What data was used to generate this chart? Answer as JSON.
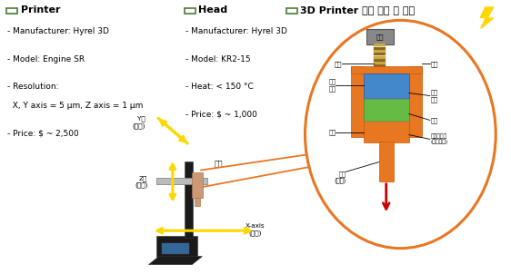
{
  "bg_color": "#ffffff",
  "checkbox_color": "#4a7c2f",
  "section_titles": [
    "Printer",
    "Head",
    "3D Printer 구동 방식 및 부품"
  ],
  "printer_lines": [
    "- Manufacturer: Hyrel 3D",
    "- Model: Engine SR",
    "- Resolution:",
    "  X, Y axis = 5 μm, Z axis = 1 μm",
    "- Price: $ ~ 2,500"
  ],
  "head_lines": [
    "- Manufacturer: Hyrel 3D",
    "- Model: KR2-15",
    "- Heat: < 150 °C",
    "- Price: $ ~ 1,000"
  ],
  "yellow": "#FFD700",
  "orange": "#E87722",
  "red": "#CC0000",
  "motor_color": "#888888",
  "bolt_color_a": "#ccaa44",
  "bolt_color_b": "#886622",
  "blue_part_color": "#4488cc",
  "green_part_color": "#66bb44",
  "head_nozzle_color": "#cc9977",
  "printer_body_color": "#1a1a1a",
  "bed_color": "#bbbbbb",
  "screen_color": "#336699"
}
